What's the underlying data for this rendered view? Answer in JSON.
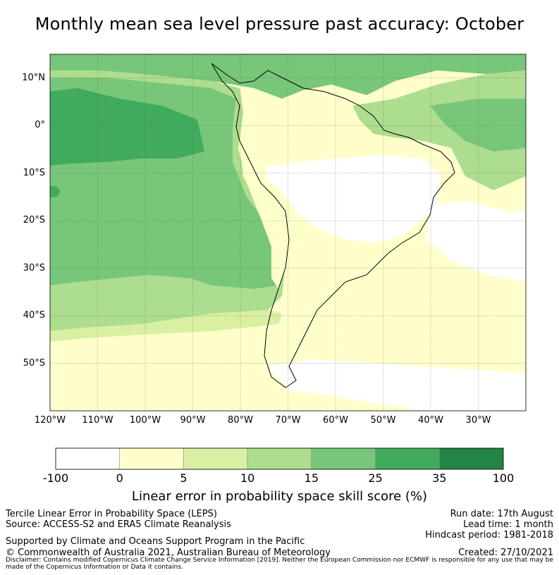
{
  "title": "Monthly mean sea level pressure past accuracy: October",
  "map": {
    "lat_labels": [
      {
        "text": "10°N",
        "lat": 10
      },
      {
        "text": "0°",
        "lat": 0
      },
      {
        "text": "10°S",
        "lat": -10
      },
      {
        "text": "20°S",
        "lat": -20
      },
      {
        "text": "30°S",
        "lat": -30
      },
      {
        "text": "40°S",
        "lat": -40
      },
      {
        "text": "50°S",
        "lat": -50
      }
    ],
    "lon_labels": [
      {
        "text": "120°W",
        "lon": -120
      },
      {
        "text": "110°W",
        "lon": -110
      },
      {
        "text": "100°W",
        "lon": -100
      },
      {
        "text": "90°W",
        "lon": -90
      },
      {
        "text": "80°W",
        "lon": -80
      },
      {
        "text": "70°W",
        "lon": -70
      },
      {
        "text": "60°W",
        "lon": -60
      },
      {
        "text": "50°W",
        "lon": -50
      },
      {
        "text": "40°W",
        "lon": -40
      },
      {
        "text": "30°W",
        "lon": -30
      }
    ],
    "extent": {
      "lon_min": -120,
      "lon_max": -20,
      "lat_min": -60,
      "lat_max": 15
    },
    "gridlines": true
  },
  "colorbar": {
    "ticks": [
      "-100",
      "0",
      "5",
      "10",
      "15",
      "25",
      "35",
      "100"
    ],
    "colors": [
      "#ffffff",
      "#ffffcc",
      "#d9f0a3",
      "#addd8e",
      "#78c679",
      "#41ab5d",
      "#238443"
    ],
    "label": "Linear error in probability space skill score (%)"
  },
  "footer": {
    "left_lines": [
      "Tercile Linear Error in Probability Space (LEPS)",
      "Source: ACCESS-S2 and ERA5 Climate Reanalysis"
    ],
    "right_lines": [
      "Run date: 17th August",
      "Lead time: 1 month",
      "Hindcast period: 1981-2018"
    ],
    "support": "Supported by Climate and Oceans Support Program in the Pacific",
    "copyright": "© Commonwealth of Australia 2021, Australian Bureau of Meteorology",
    "created": "Created: 27/10/2021",
    "disclaimer": "Disclaimer: Contains modified Copernicus Climate Change Service Information [2019]. Neither the European Commission nor ECMWF is responsible for any use that may be made of the Copernicus Information or Data it contains."
  }
}
